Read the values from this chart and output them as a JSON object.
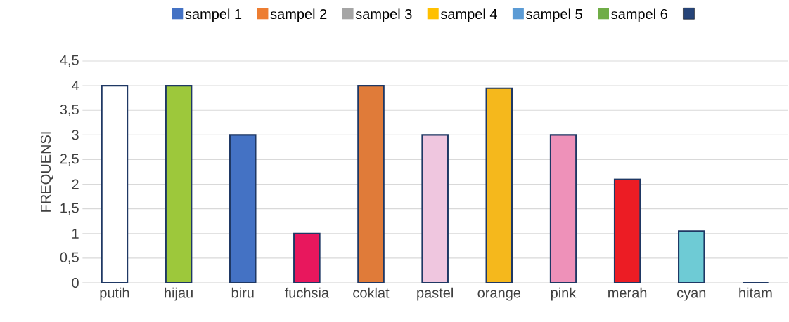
{
  "chart_data": {
    "type": "bar",
    "ylabel": "FREQUENSI",
    "categories": [
      "putih",
      "hijau",
      "biru",
      "fuchsia",
      "coklat",
      "pastel",
      "orange",
      "pink",
      "merah",
      "cyan",
      "hitam"
    ],
    "series": [
      {
        "name": "sampel 1",
        "color": "#4472c4",
        "values": [
          4,
          4,
          3,
          1,
          4,
          3,
          3.95,
          3,
          2.1,
          1.05,
          0
        ],
        "colors": [
          "#ffffff",
          "#9dc83b",
          "#4472c4",
          "#e8175d",
          "#e07b39",
          "#efc6df",
          "#f5b81c",
          "#ee91b9",
          "#ec1c24",
          "#6ecbd5",
          "#203864"
        ]
      },
      {
        "name": "sampel 2",
        "color": "#ed7d31",
        "values": [
          null,
          null,
          null,
          null,
          null,
          null,
          null,
          null,
          null,
          null,
          null
        ]
      },
      {
        "name": "sampel 3",
        "color": "#a5a5a5",
        "values": [
          null,
          null,
          null,
          null,
          null,
          null,
          null,
          null,
          null,
          null,
          null
        ]
      },
      {
        "name": "sampel 4",
        "color": "#ffc000",
        "values": [
          null,
          null,
          null,
          null,
          null,
          null,
          null,
          null,
          null,
          null,
          null
        ]
      },
      {
        "name": "sampel 5",
        "color": "#5b9bd5",
        "values": [
          null,
          null,
          null,
          null,
          null,
          null,
          null,
          null,
          null,
          null,
          null
        ]
      },
      {
        "name": "sampel 6",
        "color": "#70ad47",
        "values": [
          null,
          null,
          null,
          null,
          null,
          null,
          null,
          null,
          null,
          null,
          null
        ]
      },
      {
        "color": "#264478",
        "values": [
          null,
          null,
          null,
          null,
          null,
          null,
          null,
          null,
          null,
          null,
          null
        ]
      }
    ],
    "ylim": [
      0,
      4.5
    ],
    "yticks": [
      0,
      {
        "value": 0.5,
        "label": "0,5"
      },
      1,
      {
        "value": 1.5,
        "label": "1,5"
      },
      2,
      {
        "value": 2.5,
        "label": "2,5"
      },
      3,
      {
        "value": 3.5,
        "label": "3,5"
      },
      4,
      {
        "value": 4.5,
        "label": "4,5"
      }
    ],
    "grid": "y",
    "legend": "top"
  }
}
